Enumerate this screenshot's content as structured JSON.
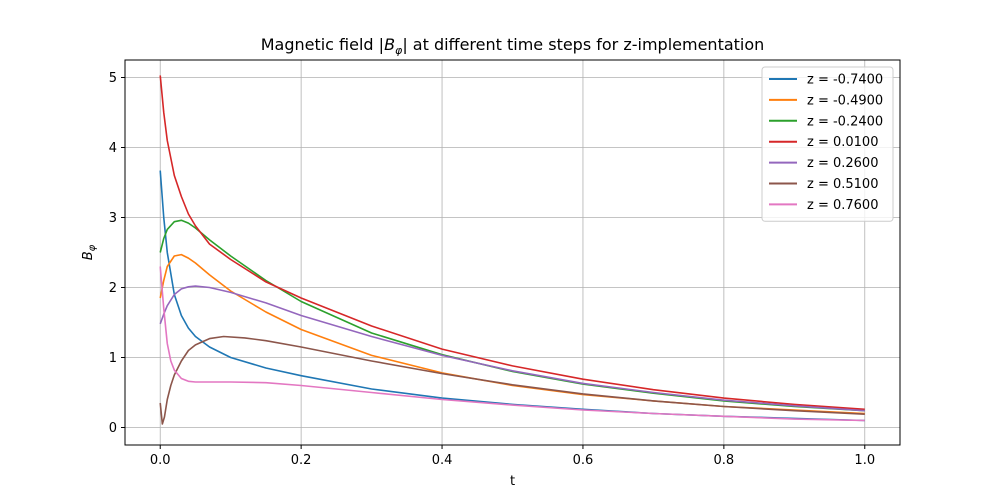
{
  "chart_data": {
    "type": "line",
    "title_parts": {
      "prefix": "Magnetic field |",
      "symbol": "B",
      "subscript": "φ",
      "suffix": "| at different time steps for z-implementation"
    },
    "xlabel": "t",
    "ylabel_parts": {
      "symbol": "B",
      "subscript": "φ"
    },
    "xlim": [
      -0.05,
      1.05
    ],
    "ylim": [
      -0.25,
      5.25
    ],
    "xticks": [
      0.0,
      0.2,
      0.4,
      0.6,
      0.8,
      1.0
    ],
    "xtick_labels": [
      "0.0",
      "0.2",
      "0.4",
      "0.6",
      "0.8",
      "1.0"
    ],
    "yticks": [
      0,
      1,
      2,
      3,
      4,
      5
    ],
    "ytick_labels": [
      "0",
      "1",
      "2",
      "3",
      "4",
      "5"
    ],
    "grid": true,
    "legend_position": "top-right",
    "series": [
      {
        "name": "z = -0.7400",
        "color": "#1f77b4",
        "x": [
          0,
          0.005,
          0.01,
          0.02,
          0.03,
          0.04,
          0.05,
          0.07,
          0.1,
          0.15,
          0.2,
          0.3,
          0.4,
          0.5,
          0.6,
          0.7,
          0.8,
          0.9,
          1.0
        ],
        "y": [
          3.67,
          3.0,
          2.5,
          1.9,
          1.6,
          1.42,
          1.3,
          1.15,
          1.0,
          0.85,
          0.74,
          0.55,
          0.42,
          0.33,
          0.26,
          0.2,
          0.16,
          0.13,
          0.1
        ]
      },
      {
        "name": "z = -0.4900",
        "color": "#ff7f0e",
        "x": [
          0,
          0.005,
          0.01,
          0.02,
          0.03,
          0.04,
          0.05,
          0.07,
          0.1,
          0.15,
          0.2,
          0.3,
          0.4,
          0.5,
          0.6,
          0.7,
          0.8,
          0.9,
          1.0
        ],
        "y": [
          1.85,
          2.1,
          2.3,
          2.45,
          2.47,
          2.42,
          2.35,
          2.18,
          1.95,
          1.65,
          1.4,
          1.03,
          0.78,
          0.6,
          0.47,
          0.38,
          0.3,
          0.25,
          0.2
        ]
      },
      {
        "name": "z = -0.2400",
        "color": "#2ca02c",
        "x": [
          0,
          0.005,
          0.01,
          0.02,
          0.03,
          0.04,
          0.05,
          0.07,
          0.1,
          0.15,
          0.2,
          0.3,
          0.4,
          0.5,
          0.6,
          0.7,
          0.8,
          0.9,
          1.0
        ],
        "y": [
          2.5,
          2.7,
          2.83,
          2.94,
          2.96,
          2.92,
          2.85,
          2.68,
          2.45,
          2.1,
          1.8,
          1.35,
          1.04,
          0.8,
          0.62,
          0.49,
          0.38,
          0.3,
          0.24
        ]
      },
      {
        "name": "z = 0.0100",
        "color": "#d62728",
        "x": [
          0,
          0.005,
          0.01,
          0.02,
          0.03,
          0.04,
          0.05,
          0.07,
          0.1,
          0.15,
          0.2,
          0.3,
          0.4,
          0.5,
          0.6,
          0.7,
          0.8,
          0.9,
          1.0
        ],
        "y": [
          5.03,
          4.5,
          4.1,
          3.6,
          3.3,
          3.05,
          2.88,
          2.62,
          2.4,
          2.08,
          1.85,
          1.45,
          1.12,
          0.88,
          0.69,
          0.54,
          0.42,
          0.33,
          0.26
        ]
      },
      {
        "name": "z = 0.2600",
        "color": "#9467bd",
        "x": [
          0,
          0.005,
          0.01,
          0.02,
          0.03,
          0.04,
          0.05,
          0.07,
          0.1,
          0.15,
          0.2,
          0.3,
          0.4,
          0.5,
          0.6,
          0.7,
          0.8,
          0.9,
          1.0
        ],
        "y": [
          1.48,
          1.62,
          1.74,
          1.9,
          1.98,
          2.01,
          2.02,
          2.0,
          1.93,
          1.78,
          1.6,
          1.3,
          1.03,
          0.81,
          0.63,
          0.5,
          0.39,
          0.31,
          0.24
        ]
      },
      {
        "name": "z = 0.5100",
        "color": "#8c564b",
        "x": [
          0,
          0.003,
          0.006,
          0.01,
          0.015,
          0.02,
          0.03,
          0.04,
          0.05,
          0.07,
          0.09,
          0.12,
          0.15,
          0.2,
          0.3,
          0.4,
          0.5,
          0.6,
          0.7,
          0.8,
          0.9,
          1.0
        ],
        "y": [
          0.35,
          0.05,
          0.15,
          0.4,
          0.6,
          0.75,
          0.95,
          1.1,
          1.18,
          1.27,
          1.3,
          1.28,
          1.24,
          1.15,
          0.95,
          0.77,
          0.61,
          0.48,
          0.38,
          0.3,
          0.24,
          0.19
        ]
      },
      {
        "name": "z = 0.7600",
        "color": "#e377c2",
        "x": [
          0,
          0.005,
          0.01,
          0.015,
          0.02,
          0.03,
          0.04,
          0.05,
          0.07,
          0.1,
          0.15,
          0.2,
          0.3,
          0.4,
          0.5,
          0.6,
          0.7,
          0.8,
          0.9,
          1.0
        ],
        "y": [
          2.3,
          1.7,
          1.2,
          0.95,
          0.82,
          0.7,
          0.66,
          0.65,
          0.65,
          0.65,
          0.64,
          0.6,
          0.5,
          0.4,
          0.32,
          0.25,
          0.2,
          0.16,
          0.12,
          0.1
        ]
      }
    ]
  }
}
